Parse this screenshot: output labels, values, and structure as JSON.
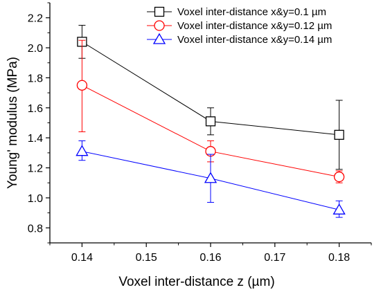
{
  "chart_data": {
    "type": "line",
    "xlabel": "Voxel inter-distance z (µm)",
    "ylabel": "Young' modulus (MPa)",
    "xlim": [
      0.135,
      0.185
    ],
    "ylim": [
      0.7,
      2.3
    ],
    "x_ticks": [
      "0.14",
      "0.15",
      "0.16",
      "0.17",
      "0.18"
    ],
    "y_ticks": [
      "0.8",
      "1.0",
      "1.2",
      "1.4",
      "1.6",
      "1.8",
      "2.0",
      "2.2"
    ],
    "x": [
      0.14,
      0.16,
      0.18
    ],
    "legend_position": "top-right",
    "grid": false,
    "series": [
      {
        "name": "Voxel inter-distance x&y=0.1 µm",
        "color": "#000000",
        "marker": "square",
        "values": [
          2.04,
          1.51,
          1.42
        ],
        "err_low": [
          1.93,
          1.42,
          1.19
        ],
        "err_high": [
          2.15,
          1.6,
          1.65
        ]
      },
      {
        "name": "Voxel inter-distance x&y=0.12 µm",
        "color": "#ff0000",
        "marker": "circle",
        "values": [
          1.75,
          1.31,
          1.14
        ],
        "err_low": [
          1.44,
          1.24,
          1.1
        ],
        "err_high": [
          2.05,
          1.38,
          1.18
        ]
      },
      {
        "name": "Voxel inter-distance x&y=0.14 µm",
        "color": "#0000ff",
        "marker": "triangle",
        "values": [
          1.31,
          1.13,
          0.92
        ],
        "err_low": [
          1.25,
          0.97,
          0.87
        ],
        "err_high": [
          1.38,
          1.29,
          0.98
        ]
      }
    ]
  }
}
